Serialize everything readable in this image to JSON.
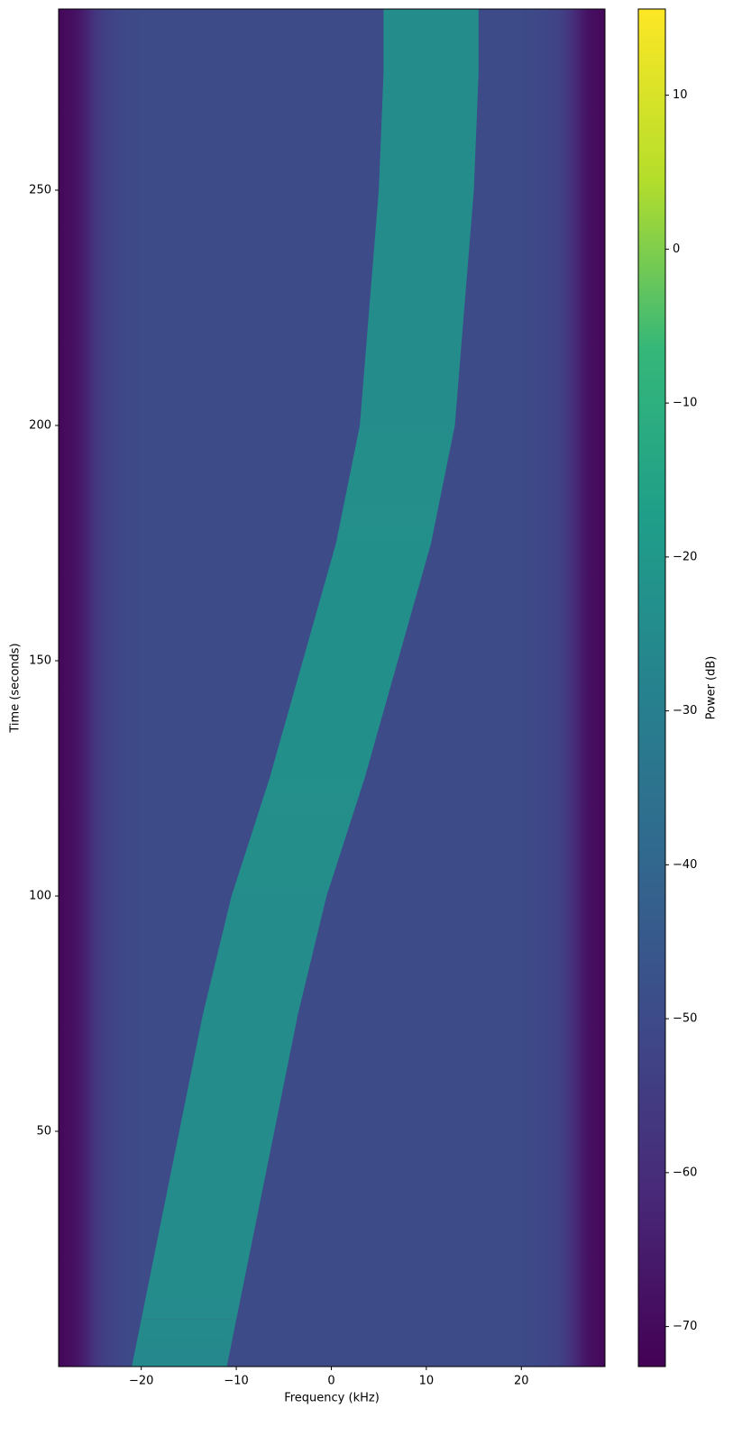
{
  "chart_data": {
    "type": "spectrogram",
    "xlabel": "Frequency (kHz)",
    "ylabel": "Time (seconds)",
    "colorbar_label": "Power (dB)",
    "colormap": "viridis",
    "xlim": [
      -28.7,
      28.8
    ],
    "ylim": [
      0,
      288.5
    ],
    "clim": [
      -72.6,
      15.6
    ],
    "xticks": [
      {
        "value": -20,
        "label": "−20"
      },
      {
        "value": -10,
        "label": "−10"
      },
      0,
      10,
      20
    ],
    "yticks": [
      50,
      100,
      150,
      200,
      250
    ],
    "cticks": [
      {
        "value": -70,
        "label": "−70"
      },
      {
        "value": -60,
        "label": "−60"
      },
      {
        "value": -50,
        "label": "−50"
      },
      {
        "value": -40,
        "label": "−40"
      },
      {
        "value": -30,
        "label": "−30"
      },
      {
        "value": -20,
        "label": "−20"
      },
      {
        "value": -10,
        "label": "−10"
      },
      0,
      10
    ],
    "noise_floor": {
      "frequency": [
        -28.7,
        -27,
        -26,
        -25,
        -24,
        -22,
        -20,
        -10,
        0,
        10,
        20,
        22,
        24,
        25,
        26,
        27,
        28.8
      ],
      "power": [
        -71,
        -68,
        -64,
        -58,
        -54,
        -51,
        -50,
        -50,
        -50,
        -50,
        -50,
        -51,
        -53,
        -57,
        -63,
        -68,
        -71
      ]
    },
    "trace": {
      "time": [
        0,
        10,
        25,
        50,
        75,
        100,
        125,
        150,
        175,
        200,
        225,
        250,
        275,
        288.5
      ],
      "frequency": [
        -16,
        -15,
        -13.5,
        -11,
        -8.5,
        -5.5,
        -1.5,
        2,
        5.5,
        8,
        9,
        10,
        10.5,
        10.5
      ],
      "power": [
        -24,
        -23,
        -22,
        -22,
        -22,
        -22,
        -21,
        -21,
        -21,
        -22,
        -22,
        -22,
        -22,
        -22
      ],
      "width": 10
    }
  }
}
